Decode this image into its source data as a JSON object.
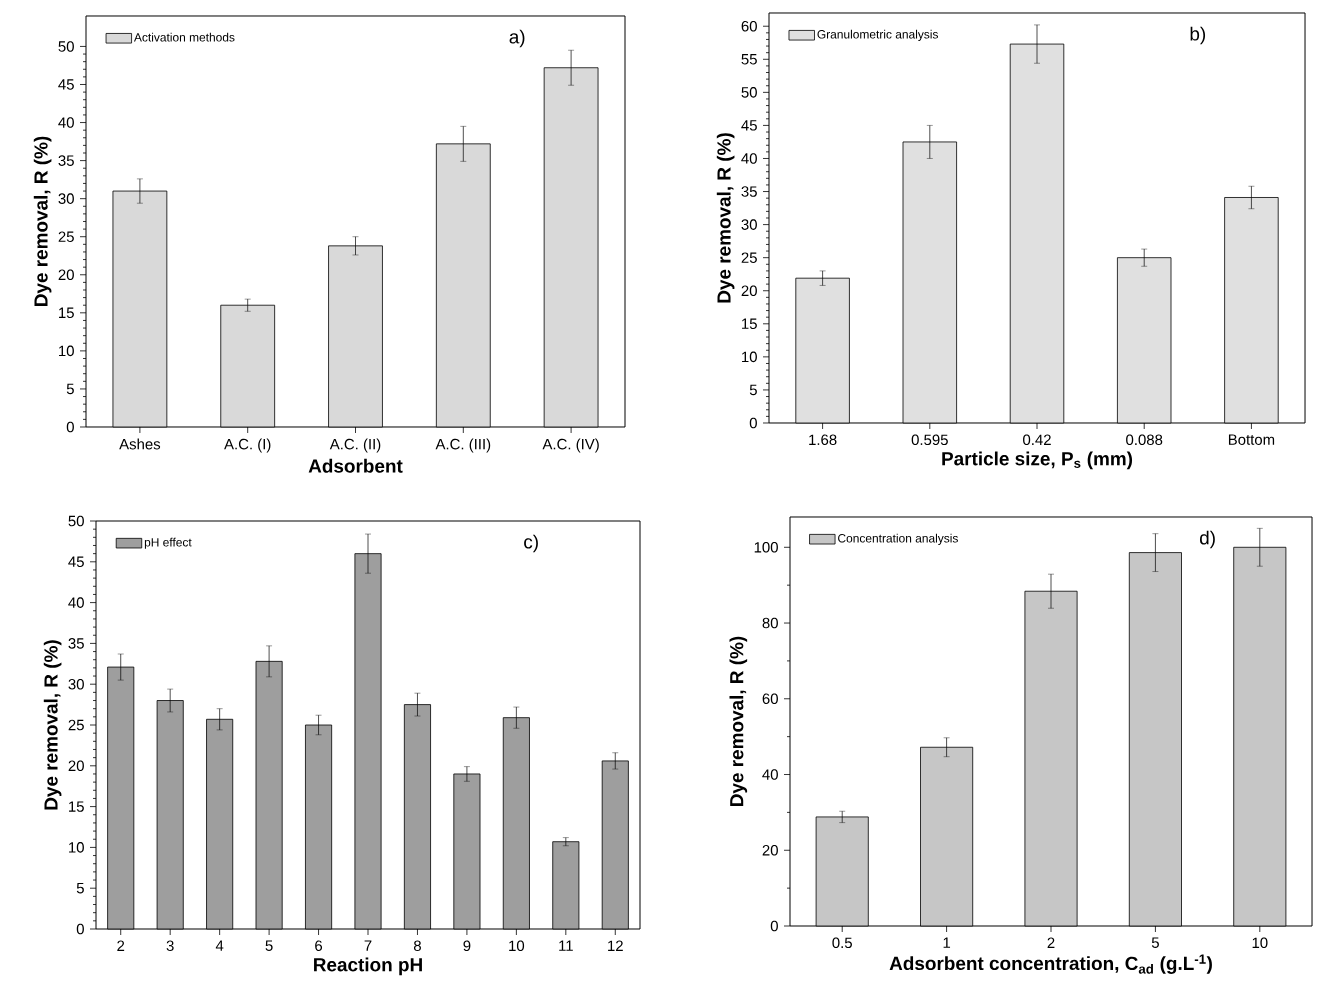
{
  "chart_data": [
    {
      "type": "bar",
      "xlabel": "Adsorbent",
      "ylabel": "Dye removal, R (%)",
      "categories": [
        "Ashes",
        "A.C. (I)",
        "A.C. (II)",
        "A.C. (III)",
        "A.C. (IV)"
      ],
      "ylim": [
        0,
        54
      ],
      "yticks": [
        0,
        5,
        10,
        15,
        20,
        25,
        30,
        35,
        40,
        45,
        50
      ],
      "legend": "top left",
      "annotations": [
        "a)"
      ],
      "series": [
        {
          "name": "Activation methods",
          "color": "#d9d9d9",
          "values": [
            31.0,
            16.0,
            23.8,
            37.2,
            47.2
          ],
          "errors": [
            1.6,
            0.8,
            1.2,
            2.3,
            2.3
          ]
        }
      ]
    },
    {
      "type": "bar",
      "xlabel": "Particle size, P$_{s}$ (mm)",
      "ylabel": "Dye removal, R (%)",
      "categories": [
        "1.68",
        "0.595",
        "0.42",
        "0.088",
        "Bottom"
      ],
      "ylim": [
        0,
        62
      ],
      "yticks": [
        0,
        5,
        10,
        15,
        20,
        25,
        30,
        35,
        40,
        45,
        50,
        55,
        60
      ],
      "legend": "top left",
      "annotations": [
        "b)"
      ],
      "series": [
        {
          "name": "Granulometric analysis",
          "color": "#e0e0e0",
          "values": [
            21.9,
            42.5,
            57.3,
            25.0,
            34.1
          ],
          "errors": [
            1.1,
            2.5,
            2.9,
            1.3,
            1.7
          ]
        }
      ]
    },
    {
      "type": "bar",
      "xlabel": "Reaction pH",
      "ylabel": "Dye removal, R (%)",
      "categories": [
        "2",
        "3",
        "4",
        "5",
        "6",
        "7",
        "8",
        "9",
        "10",
        "11",
        "12"
      ],
      "ylim": [
        0,
        50
      ],
      "yticks": [
        0,
        5,
        10,
        15,
        20,
        25,
        30,
        35,
        40,
        45,
        50
      ],
      "legend": "top left",
      "annotations": [
        "c)"
      ],
      "series": [
        {
          "name": "pH effect",
          "color": "#9e9e9e",
          "values": [
            32.1,
            28.0,
            25.7,
            32.8,
            25.0,
            46.0,
            27.5,
            19.0,
            25.9,
            10.7,
            20.6
          ],
          "errors": [
            1.6,
            1.4,
            1.3,
            1.9,
            1.2,
            2.4,
            1.4,
            0.9,
            1.3,
            0.5,
            1.0
          ]
        }
      ]
    },
    {
      "type": "bar",
      "xlabel": "Adsorbent concentration, C$_{ad}$ (g.L$^{-1}$)",
      "ylabel": "Dye removal, R (%)",
      "categories": [
        "0.5",
        "1",
        "2",
        "5",
        "10"
      ],
      "ylim": [
        0,
        108
      ],
      "yticks": [
        0,
        20,
        40,
        60,
        80,
        100
      ],
      "legend": "top left",
      "annotations": [
        "d)"
      ],
      "series": [
        {
          "name": "Concentration analysis",
          "color": "#c6c6c6",
          "values": [
            28.8,
            47.2,
            88.4,
            98.6,
            100.0
          ],
          "errors": [
            1.5,
            2.5,
            4.5,
            5.0,
            5.0
          ]
        }
      ]
    }
  ]
}
